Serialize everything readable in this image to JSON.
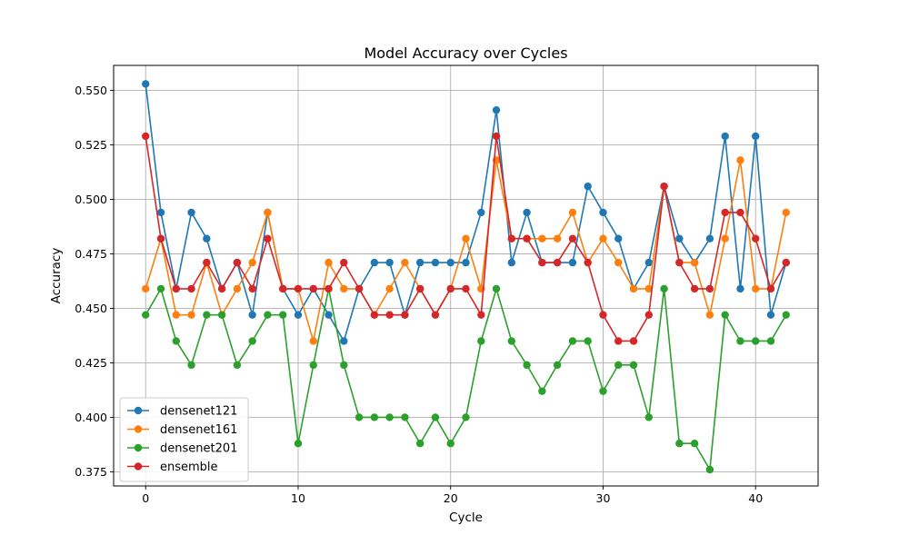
{
  "chart_data": {
    "type": "line",
    "title": "Model Accuracy over Cycles",
    "xlabel": "Cycle",
    "ylabel": "Accuracy",
    "xlim": [
      -2.1,
      44.1
    ],
    "ylim": [
      0.3685,
      0.5615
    ],
    "xticks": [
      0,
      10,
      20,
      30,
      40
    ],
    "xtick_labels": [
      "0",
      "10",
      "20",
      "30",
      "40"
    ],
    "yticks": [
      0.375,
      0.4,
      0.425,
      0.45,
      0.475,
      0.5,
      0.525,
      0.55
    ],
    "ytick_labels": [
      "0.375",
      "0.400",
      "0.425",
      "0.450",
      "0.475",
      "0.500",
      "0.525",
      "0.550"
    ],
    "grid": true,
    "legend_position": "lower-left",
    "x": [
      0,
      1,
      2,
      3,
      4,
      5,
      6,
      7,
      8,
      9,
      10,
      11,
      12,
      13,
      14,
      15,
      16,
      17,
      18,
      19,
      20,
      21,
      22,
      23,
      24,
      25,
      26,
      27,
      28,
      29,
      30,
      31,
      32,
      33,
      34,
      35,
      36,
      37,
      38,
      39,
      40,
      41,
      42
    ],
    "series": [
      {
        "name": "densenet121",
        "color": "#1f77b4",
        "values": [
          0.553,
          0.494,
          0.459,
          0.494,
          0.482,
          0.459,
          0.471,
          0.447,
          0.494,
          0.459,
          0.447,
          0.459,
          0.447,
          0.435,
          0.459,
          0.471,
          0.471,
          0.447,
          0.471,
          0.471,
          0.471,
          0.471,
          0.494,
          0.541,
          0.471,
          0.494,
          0.471,
          0.471,
          0.471,
          0.506,
          0.494,
          0.482,
          0.459,
          0.471,
          0.506,
          0.482,
          0.471,
          0.482,
          0.529,
          0.459,
          0.529,
          0.447,
          0.471
        ]
      },
      {
        "name": "densenet161",
        "color": "#ff7f0e",
        "values": [
          0.459,
          0.482,
          0.447,
          0.447,
          0.471,
          0.447,
          0.459,
          0.471,
          0.494,
          0.459,
          0.459,
          0.435,
          0.471,
          0.459,
          0.459,
          0.447,
          0.459,
          0.471,
          0.459,
          0.447,
          0.459,
          0.482,
          0.459,
          0.518,
          0.482,
          0.482,
          0.482,
          0.482,
          0.494,
          0.471,
          0.482,
          0.471,
          0.459,
          0.459,
          0.506,
          0.471,
          0.471,
          0.447,
          0.482,
          0.518,
          0.459,
          0.459,
          0.494
        ]
      },
      {
        "name": "densenet201",
        "color": "#2ca02c",
        "values": [
          0.447,
          0.459,
          0.435,
          0.424,
          0.447,
          0.447,
          0.424,
          0.435,
          0.447,
          0.447,
          0.388,
          0.424,
          0.459,
          0.424,
          0.4,
          0.4,
          0.4,
          0.4,
          0.388,
          0.4,
          0.388,
          0.4,
          0.435,
          0.459,
          0.435,
          0.424,
          0.412,
          0.424,
          0.435,
          0.435,
          0.412,
          0.424,
          0.424,
          0.4,
          0.459,
          0.388,
          0.388,
          0.376,
          0.447,
          0.435,
          0.435,
          0.435,
          0.447
        ]
      },
      {
        "name": "ensemble",
        "color": "#d62728",
        "values": [
          0.529,
          0.482,
          0.459,
          0.459,
          0.471,
          0.459,
          0.471,
          0.459,
          0.482,
          0.459,
          0.459,
          0.459,
          0.459,
          0.471,
          0.459,
          0.447,
          0.447,
          0.447,
          0.459,
          0.447,
          0.459,
          0.459,
          0.447,
          0.529,
          0.482,
          0.482,
          0.471,
          0.471,
          0.482,
          0.471,
          0.447,
          0.435,
          0.435,
          0.447,
          0.506,
          0.471,
          0.459,
          0.459,
          0.494,
          0.494,
          0.482,
          0.459,
          0.471
        ]
      }
    ]
  }
}
